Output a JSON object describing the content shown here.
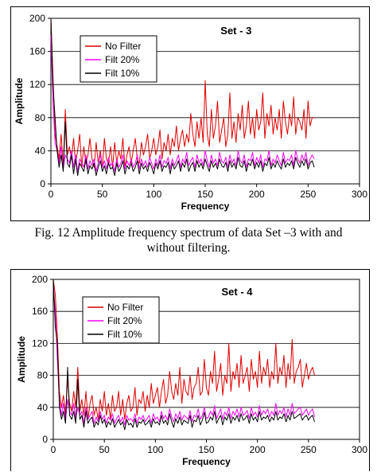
{
  "captions": [
    {
      "line1": "Fig. 12 Amplitude frequency spectrum of data Set –3 with and",
      "line2": "without filtering."
    }
  ],
  "colors": {
    "no_filter": "#e00000",
    "filt20": "#ff00ff",
    "filt10": "#000000",
    "grid": "#000000"
  },
  "chart_data": [
    {
      "type": "line",
      "title": "Set - 3",
      "xlabel": "Frequency",
      "ylabel": "Amplitude",
      "xlim": [
        0,
        300
      ],
      "ylim": [
        0,
        200
      ],
      "xticks": [
        0,
        50,
        100,
        150,
        200,
        250,
        300
      ],
      "yticks": [
        0,
        40,
        80,
        120,
        160,
        200
      ],
      "grid": "horizontal",
      "legend": "top-left",
      "series": [
        {
          "name": "No Filter",
          "color": "#e00000",
          "x_start": 0,
          "x_step": 2,
          "values": [
            200,
            130,
            60,
            45,
            30,
            60,
            20,
            90,
            35,
            45,
            30,
            55,
            25,
            40,
            60,
            20,
            45,
            25,
            35,
            55,
            30,
            20,
            50,
            25,
            40,
            20,
            55,
            30,
            25,
            45,
            20,
            50,
            25,
            40,
            30,
            55,
            20,
            35,
            45,
            25,
            40,
            55,
            30,
            25,
            50,
            35,
            45,
            60,
            30,
            40,
            55,
            35,
            45,
            65,
            30,
            50,
            40,
            60,
            35,
            55,
            45,
            70,
            40,
            55,
            65,
            45,
            60,
            50,
            85,
            60,
            45,
            75,
            55,
            80,
            50,
            125,
            60,
            45,
            90,
            55,
            70,
            100,
            50,
            65,
            80,
            45,
            60,
            110,
            55,
            75,
            50,
            85,
            65,
            95,
            55,
            70,
            100,
            60,
            80,
            55,
            90,
            65,
            75,
            110,
            55,
            85,
            70,
            95,
            60,
            80,
            65,
            90,
            55,
            100,
            75,
            60,
            85,
            70,
            105,
            60,
            80,
            75,
            65,
            90,
            55,
            100,
            70,
            80,
            80
          ]
        },
        {
          "name": "Filt 20%",
          "color": "#ff00ff",
          "x_start": 0,
          "x_step": 2,
          "values": [
            180,
            100,
            50,
            40,
            25,
            45,
            18,
            35,
            30,
            25,
            40,
            20,
            35,
            15,
            30,
            25,
            20,
            35,
            18,
            28,
            22,
            30,
            15,
            25,
            35,
            20,
            28,
            18,
            32,
            22,
            26,
            15,
            30,
            20,
            25,
            35,
            18,
            28,
            22,
            30,
            20,
            25,
            35,
            18,
            30,
            22,
            28,
            20,
            32,
            25,
            18,
            30,
            22,
            35,
            20,
            28,
            25,
            32,
            18,
            30,
            22,
            28,
            35,
            20,
            30,
            25,
            38,
            22,
            28,
            32,
            20,
            35,
            25,
            30,
            22,
            40,
            28,
            20,
            35,
            25,
            30,
            22,
            38,
            28,
            25,
            32,
            20,
            35,
            25,
            30,
            22,
            40,
            28,
            25,
            35,
            20,
            30,
            28,
            38,
            22,
            32,
            25,
            35,
            20,
            30,
            28,
            40,
            22,
            30,
            25,
            35,
            28,
            22,
            38,
            25,
            30,
            28,
            35,
            22,
            40,
            30,
            25,
            35,
            28,
            38,
            22,
            30,
            35,
            30
          ]
        },
        {
          "name": "Filt 10%",
          "color": "#000000",
          "x_start": 0,
          "x_step": 2,
          "values": [
            200,
            120,
            80,
            40,
            20,
            35,
            15,
            75,
            25,
            20,
            35,
            12,
            30,
            10,
            25,
            20,
            15,
            30,
            12,
            22,
            18,
            25,
            10,
            20,
            28,
            15,
            22,
            12,
            25,
            18,
            20,
            10,
            25,
            15,
            20,
            28,
            12,
            22,
            18,
            25,
            15,
            20,
            28,
            12,
            25,
            18,
            22,
            15,
            26,
            20,
            12,
            25,
            18,
            28,
            15,
            22,
            20,
            26,
            12,
            25,
            18,
            22,
            28,
            15,
            25,
            20,
            30,
            15,
            22,
            26,
            15,
            28,
            20,
            25,
            18,
            30,
            22,
            15,
            28,
            20,
            25,
            18,
            30,
            22,
            20,
            26,
            15,
            28,
            20,
            25,
            18,
            32,
            22,
            20,
            28,
            15,
            25,
            22,
            30,
            18,
            26,
            20,
            28,
            15,
            25,
            22,
            32,
            18,
            25,
            20,
            28,
            22,
            18,
            30,
            20,
            25,
            22,
            28,
            18,
            32,
            25,
            20,
            28,
            22,
            30,
            18,
            25,
            28,
            20
          ]
        }
      ]
    },
    {
      "type": "line",
      "title": "Set - 4",
      "xlabel": "Frequency",
      "ylabel": "Amplitude",
      "xlim": [
        0,
        300
      ],
      "ylim": [
        0,
        200
      ],
      "xticks": [
        0,
        50,
        100,
        150,
        200,
        250,
        300
      ],
      "yticks": [
        0,
        40,
        80,
        120,
        160,
        200
      ],
      "grid": "horizontal",
      "legend": "top-left",
      "series": [
        {
          "name": "No Filter",
          "color": "#e00000",
          "x_start": 0,
          "x_step": 2,
          "values": [
            200,
            180,
            130,
            60,
            40,
            55,
            30,
            75,
            45,
            35,
            60,
            40,
            90,
            35,
            50,
            30,
            60,
            25,
            45,
            55,
            30,
            40,
            25,
            50,
            35,
            60,
            30,
            45,
            25,
            55,
            35,
            40,
            60,
            30,
            50,
            25,
            45,
            55,
            35,
            40,
            65,
            30,
            50,
            45,
            60,
            35,
            55,
            40,
            70,
            45,
            55,
            65,
            40,
            60,
            75,
            45,
            55,
            85,
            60,
            50,
            70,
            55,
            90,
            45,
            75,
            60,
            55,
            80,
            50,
            65,
            70,
            90,
            55,
            60,
            100,
            65,
            55,
            85,
            70,
            110,
            60,
            75,
            95,
            55,
            80,
            70,
            120,
            60,
            85,
            75,
            95,
            65,
            105,
            70,
            80,
            90,
            60,
            100,
            75,
            85,
            65,
            110,
            70,
            90,
            80,
            100,
            65,
            85,
            75,
            120,
            70,
            90,
            80,
            105,
            65,
            95,
            75,
            125,
            70,
            85,
            90,
            100,
            65,
            80,
            95,
            75,
            85,
            90,
            80
          ]
        },
        {
          "name": "Filt 20%",
          "color": "#ff00ff",
          "x_start": 0,
          "x_step": 2,
          "values": [
            190,
            160,
            100,
            50,
            30,
            45,
            25,
            50,
            35,
            30,
            45,
            25,
            40,
            30,
            35,
            20,
            40,
            25,
            30,
            35,
            20,
            28,
            22,
            35,
            25,
            30,
            20,
            28,
            24,
            32,
            20,
            26,
            30,
            22,
            28,
            18,
            30,
            24,
            26,
            22,
            32,
            20,
            28,
            25,
            30,
            22,
            26,
            30,
            20,
            32,
            25,
            28,
            22,
            35,
            26,
            30,
            24,
            38,
            28,
            22,
            32,
            26,
            35,
            24,
            30,
            28,
            25,
            36,
            22,
            30,
            28,
            38,
            25,
            30,
            40,
            26,
            28,
            35,
            30,
            42,
            26,
            32,
            38,
            25,
            34,
            30,
            40,
            26,
            35,
            30,
            38,
            28,
            40,
            30,
            32,
            36,
            26,
            40,
            30,
            34,
            28,
            42,
            30,
            36,
            32,
            38,
            28,
            35,
            30,
            45,
            30,
            36,
            32,
            40,
            28,
            38,
            30,
            45,
            32,
            35,
            38,
            40,
            30,
            34,
            38,
            30,
            35,
            38,
            28
          ]
        },
        {
          "name": "Filt 10%",
          "color": "#000000",
          "x_start": 0,
          "x_step": 2,
          "values": [
            200,
            140,
            120,
            40,
            25,
            35,
            20,
            90,
            30,
            25,
            35,
            20,
            75,
            25,
            30,
            15,
            35,
            20,
            25,
            28,
            15,
            22,
            18,
            30,
            20,
            25,
            15,
            22,
            18,
            26,
            15,
            20,
            25,
            18,
            22,
            12,
            25,
            18,
            20,
            15,
            26,
            15,
            22,
            20,
            25,
            18,
            20,
            24,
            15,
            26,
            20,
            22,
            18,
            30,
            20,
            24,
            18,
            32,
            22,
            15,
            26,
            20,
            28,
            18,
            24,
            22,
            20,
            30,
            15,
            24,
            22,
            30,
            18,
            24,
            34,
            20,
            22,
            28,
            24,
            35,
            20,
            26,
            30,
            18,
            28,
            24,
            32,
            20,
            28,
            24,
            30,
            22,
            32,
            24,
            26,
            30,
            20,
            32,
            24,
            28,
            22,
            35,
            24,
            28,
            26,
            30,
            22,
            28,
            24,
            35,
            24,
            28,
            26,
            32,
            22,
            30,
            24,
            35,
            26,
            28,
            30,
            32,
            24,
            28,
            30,
            24,
            28,
            30,
            22
          ]
        }
      ]
    }
  ]
}
